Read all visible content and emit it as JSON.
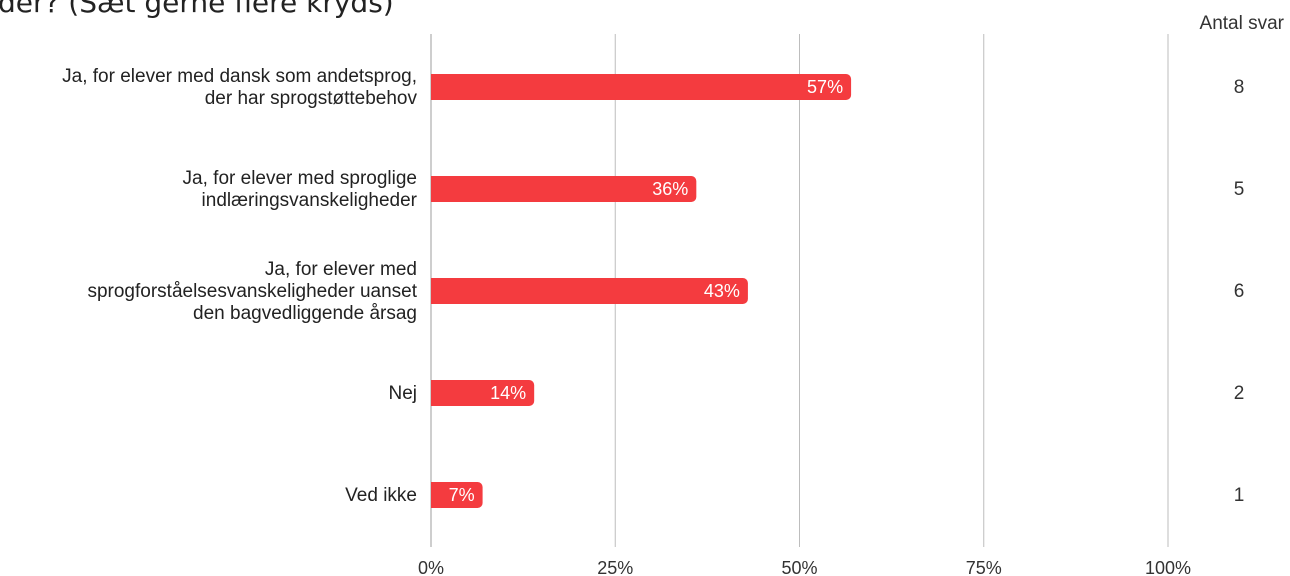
{
  "header": {
    "title": "der? (Sæt gerne flere kryds)",
    "answers_label": "Antal svar"
  },
  "colors": {
    "bar": "#f43b3f",
    "grid": "#bdbdbd",
    "axis": "#9e9e9e"
  },
  "chart_data": {
    "type": "bar",
    "orientation": "horizontal",
    "title": "der? (Sæt gerne flere kryds)",
    "xlabel": "",
    "ylabel": "",
    "xlim": [
      0,
      100
    ],
    "grid": true,
    "x_ticks": [
      0,
      25,
      50,
      75,
      100
    ],
    "x_tick_labels": [
      "0%",
      "25%",
      "50%",
      "75%",
      "100%"
    ],
    "categories": [
      [
        "Ja, for elever med dansk som andetsprog,",
        "der har sprogstøttebehov"
      ],
      [
        "Ja, for elever med sproglige",
        "indlæringsvanskeligheder"
      ],
      [
        "Ja, for elever med",
        "sprogforståelsesvanskeligheder uanset",
        "den bagvedliggende årsag"
      ],
      [
        "Nej"
      ],
      [
        "Ved ikke"
      ]
    ],
    "values": [
      57,
      36,
      43,
      14,
      7
    ],
    "value_labels": [
      "57%",
      "36%",
      "43%",
      "14%",
      "7%"
    ],
    "counts_header": "Antal svar",
    "counts": [
      "8",
      "5",
      "6",
      "2",
      "1"
    ]
  }
}
